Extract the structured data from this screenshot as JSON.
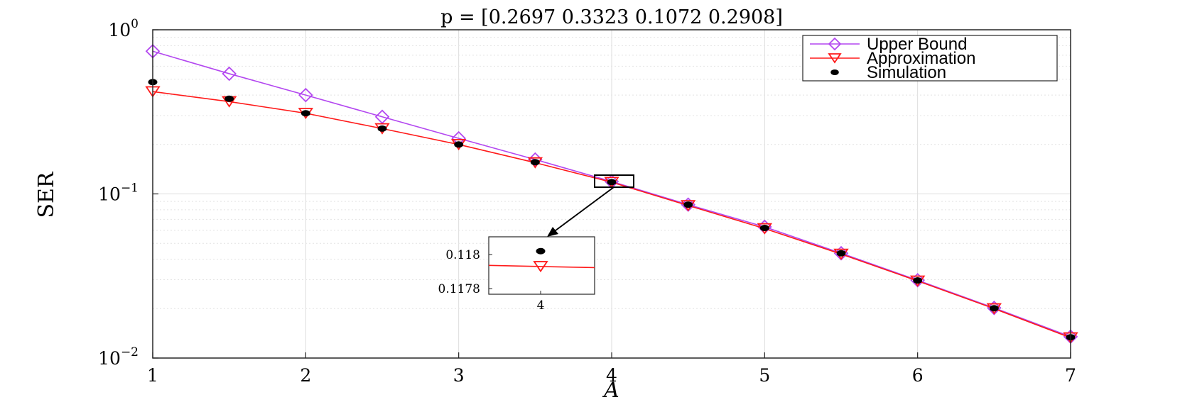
{
  "chart_data": {
    "type": "line",
    "title": "p = [0.2697 0.3323 0.1072 0.2908]",
    "xlabel": "A",
    "ylabel": "SER",
    "xlim": [
      1,
      7
    ],
    "ylim": [
      0.01,
      1
    ],
    "yscale": "log",
    "grid": true,
    "legend_position": "top-right",
    "x_ticks": [
      "1",
      "2",
      "3",
      "4",
      "5",
      "6",
      "7"
    ],
    "y_ticks": [
      {
        "base": "10",
        "exp": "0"
      },
      {
        "base": "10",
        "exp": "−1"
      },
      {
        "base": "10",
        "exp": "−2"
      }
    ],
    "series": [
      {
        "name": "Upper Bound",
        "color": "#b347f0",
        "marker": "diamond",
        "x": [
          1,
          1.5,
          2,
          2.5,
          3,
          3.5,
          4,
          4.5,
          5,
          5.5,
          6,
          6.5,
          7
        ],
        "y": [
          0.74,
          0.54,
          0.4,
          0.295,
          0.218,
          0.162,
          0.119,
          0.086,
          0.063,
          0.0435,
          0.0298,
          0.0202,
          0.0135
        ]
      },
      {
        "name": "Approximation",
        "color": "#ff1a1a",
        "marker": "triangle-down",
        "x": [
          1,
          1.5,
          2,
          2.5,
          3,
          3.5,
          4,
          4.5,
          5,
          5.5,
          6,
          6.5,
          7
        ],
        "y": [
          0.42,
          0.365,
          0.31,
          0.25,
          0.2,
          0.155,
          0.1178,
          0.085,
          0.0615,
          0.043,
          0.0295,
          0.02,
          0.0133
        ]
      },
      {
        "name": "Simulation",
        "color": "#000000",
        "marker": "dot",
        "x": [
          1,
          1.5,
          2,
          2.5,
          3,
          3.5,
          4,
          4.5,
          5,
          5.5,
          6,
          6.5,
          7
        ],
        "y": [
          0.48,
          0.38,
          0.31,
          0.25,
          0.2,
          0.156,
          0.118,
          0.086,
          0.062,
          0.0435,
          0.0297,
          0.0201,
          0.0134
        ]
      }
    ],
    "inset": {
      "x_tick": "4",
      "y_ticks": [
        "0.118",
        "0.1178"
      ],
      "simulation_y": 0.11802,
      "approximation_y": 0.11793
    }
  }
}
